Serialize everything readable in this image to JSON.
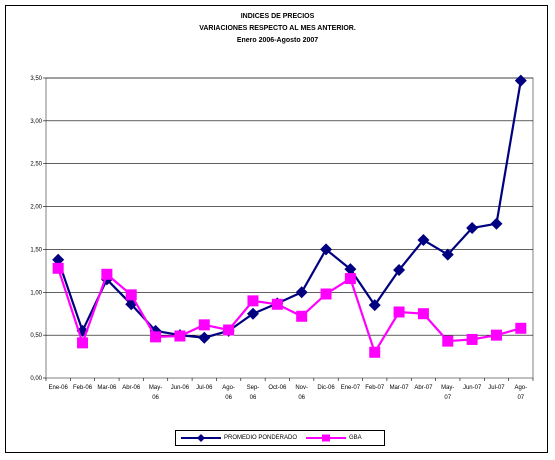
{
  "chart_data": {
    "type": "line",
    "title_lines": [
      "INDICES DE PRECIOS",
      "VARIACIONES RESPECTO AL MES ANTERIOR.",
      "Enero 2006-Agosto 2007"
    ],
    "categories": [
      [
        "Ene-06"
      ],
      [
        "Feb-06"
      ],
      [
        "Mar-06"
      ],
      [
        "Abr-06"
      ],
      [
        "May-",
        "06"
      ],
      [
        "Jun-06"
      ],
      [
        "Jul-06"
      ],
      [
        "Ago-",
        "06"
      ],
      [
        "Sep-",
        "06"
      ],
      [
        "Oct-06"
      ],
      [
        "Nov-",
        "06"
      ],
      [
        "Dic-06"
      ],
      [
        "Ene-07"
      ],
      [
        "Feb-07"
      ],
      [
        "Mar-07"
      ],
      [
        "Abr-07"
      ],
      [
        "May-",
        "07"
      ],
      [
        "Jun-07"
      ],
      [
        "Jul-07"
      ],
      [
        "Ago-",
        "07"
      ]
    ],
    "ylim": [
      0,
      3.5
    ],
    "yticks": [
      "0,00",
      "0,50",
      "1,00",
      "1,50",
      "2,00",
      "2,50",
      "3,00",
      "3,50"
    ],
    "gridlines": true,
    "legend_position": "bottom",
    "series": [
      {
        "name": "PROMEDIO PONDERADO",
        "color": "#000080",
        "marker": "diamond",
        "values": [
          1.38,
          0.55,
          1.15,
          0.86,
          0.55,
          0.5,
          0.47,
          0.55,
          0.75,
          0.87,
          1.0,
          1.5,
          1.27,
          0.85,
          1.26,
          1.61,
          1.44,
          1.75,
          1.8,
          3.47
        ]
      },
      {
        "name": "GBA",
        "color": "#FF00FF",
        "marker": "square",
        "values": [
          1.28,
          0.41,
          1.21,
          0.97,
          0.48,
          0.49,
          0.62,
          0.56,
          0.9,
          0.86,
          0.72,
          0.98,
          1.16,
          0.3,
          0.77,
          0.75,
          0.43,
          0.45,
          0.5,
          0.58
        ]
      }
    ]
  }
}
